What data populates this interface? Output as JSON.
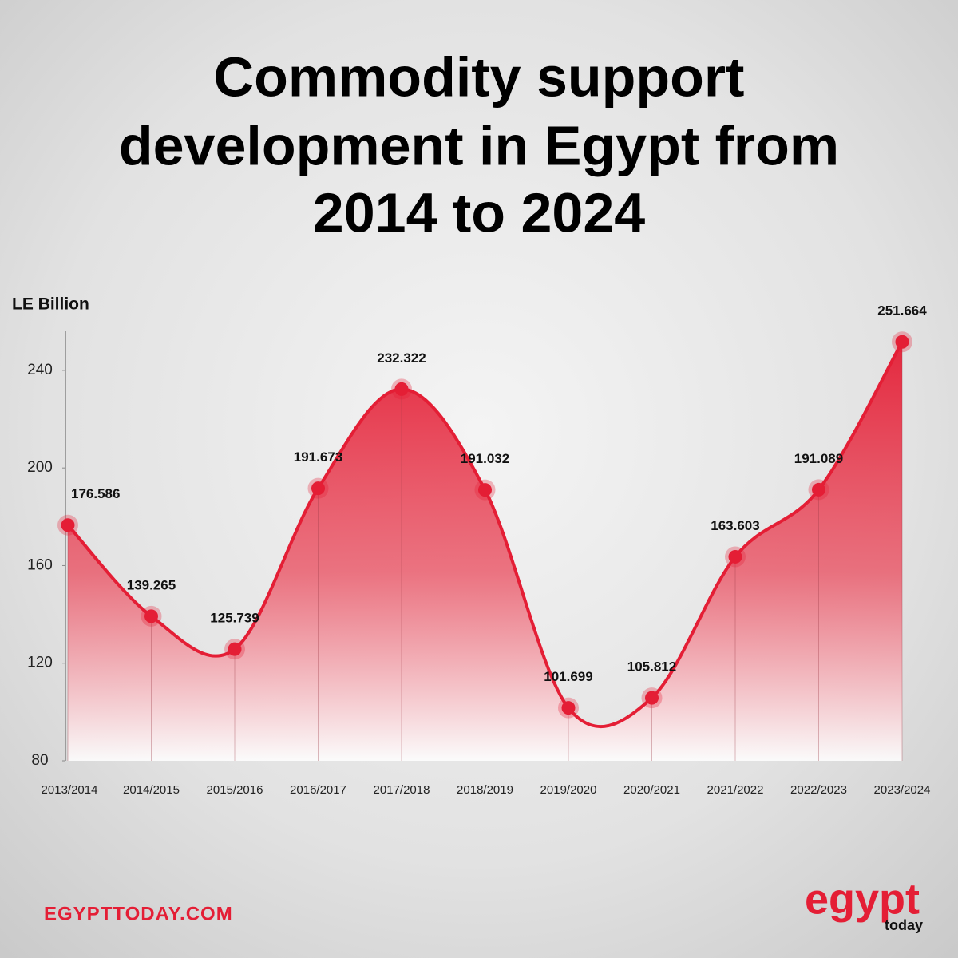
{
  "chart_data": {
    "type": "area",
    "title": [
      "Commodity support",
      "development in Egypt from",
      "2014 to 2024"
    ],
    "y_axis_label": "LE Billion",
    "categories": [
      "2013/2014",
      "2014/2015",
      "2015/2016",
      "2016/2017",
      "2017/2018",
      "2018/2019",
      "2019/2020",
      "2020/2021",
      "2021/2022",
      "2022/2023",
      "2023/2024"
    ],
    "values": [
      176.586,
      139.265,
      125.739,
      191.673,
      232.322,
      191.032,
      101.699,
      105.812,
      163.603,
      191.089,
      251.664
    ],
    "color": "#e41e35",
    "ylim": [
      80,
      256
    ],
    "yticks": [
      80,
      120,
      160,
      200,
      240
    ],
    "grid": false,
    "footer": "EGYPTTODAY.COM",
    "logo": {
      "name": "egypt",
      "sub": "today"
    }
  }
}
